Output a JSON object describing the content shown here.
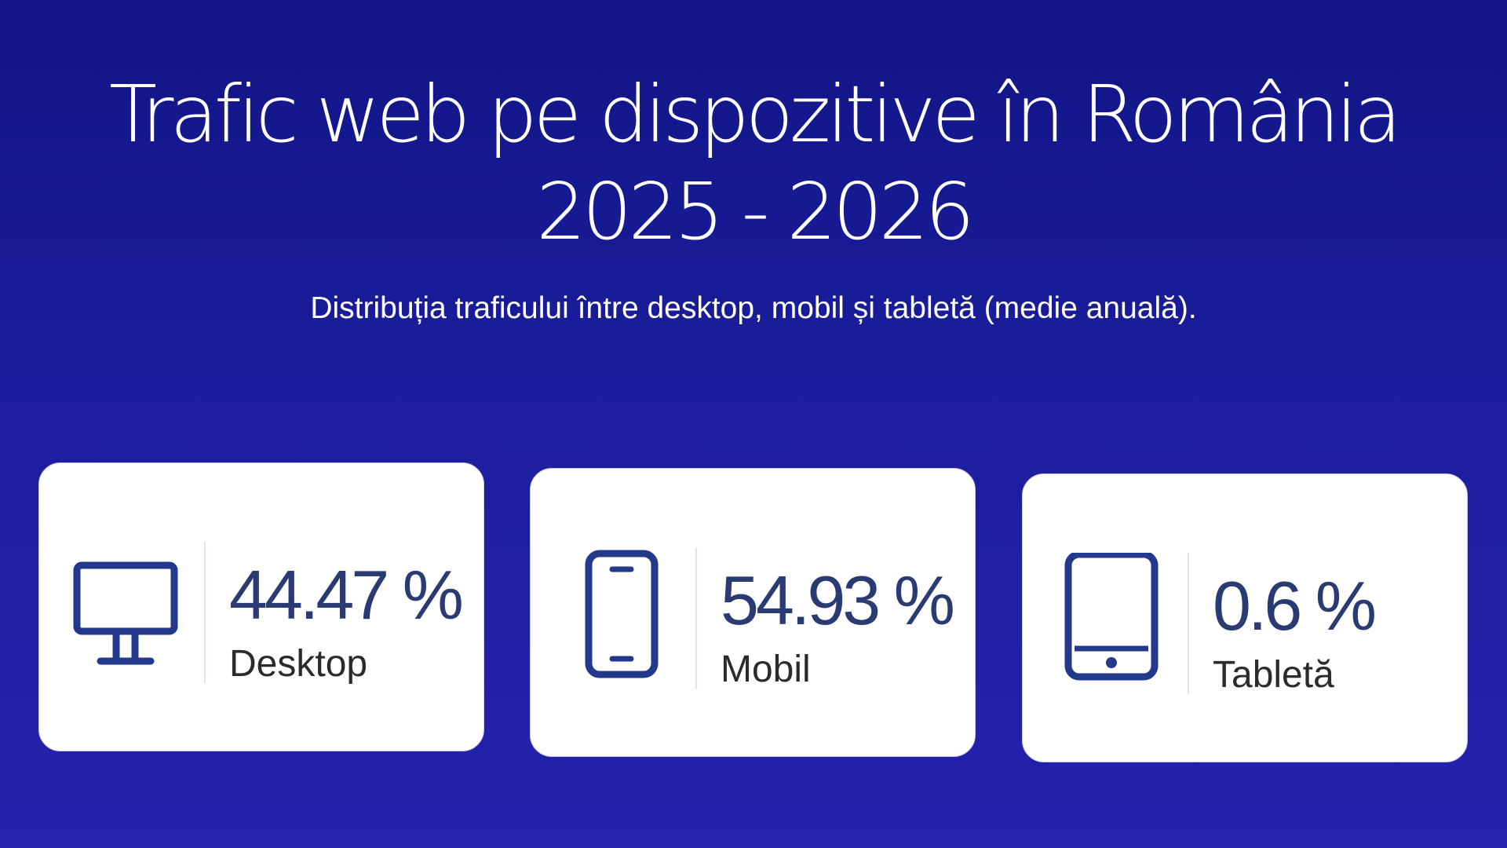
{
  "header": {
    "title_line1": "Trafic web pe dispozitive în România",
    "title_line2": "2025 - 2026",
    "subtitle": "Distribuția traficului între desktop, mobil și tabletă (medie anuală)."
  },
  "cards": [
    {
      "icon": "desktop-monitor-icon",
      "value": "44.47 %",
      "label": "Desktop"
    },
    {
      "icon": "mobile-phone-icon",
      "value": "54.93 %",
      "label": "Mobil"
    },
    {
      "icon": "tablet-icon",
      "value": "0.6 %",
      "label": "Tabletă"
    }
  ],
  "colors": {
    "background_top": "#111585",
    "background_bottom": "#2522ad",
    "icon": "#233a8c",
    "value_text": "#2a3a73"
  }
}
